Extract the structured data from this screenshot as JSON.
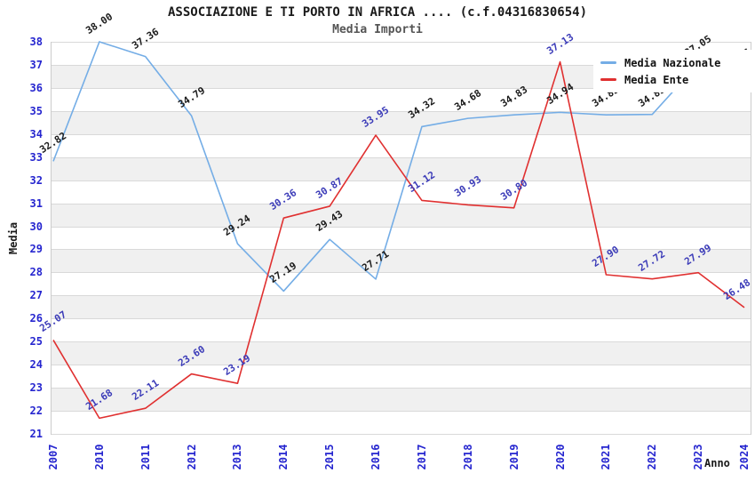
{
  "header": {
    "title": "ASSOCIAZIONE E TI PORTO IN AFRICA .... (c.f.04316830654)",
    "subtitle": "Media Importi"
  },
  "legend": {
    "items": [
      {
        "label": "Media Nazionale",
        "color": "#74ade6"
      },
      {
        "label": "Media Ente",
        "color": "#e03030"
      }
    ]
  },
  "colors": {
    "axis_tick_label": "#2525cf",
    "national_series_line": "#74ade6",
    "national_series_data_label": "#1a1a1a",
    "ente_series_line": "#e03030",
    "ente_series_data_label": "#3b3bb8",
    "band_fill": "#f0f0f0",
    "gridline": "#d9d9d9"
  },
  "chart_data": {
    "type": "line",
    "title": "ASSOCIAZIONE E TI PORTO IN AFRICA .... (c.f.04316830654)",
    "subtitle": "Media Importi",
    "xlabel": "Anno",
    "ylabel": "Media",
    "ylim": [
      21,
      38
    ],
    "ytick_step": 1,
    "grid": true,
    "alternating_bands": true,
    "legend_position": "top-right",
    "categories": [
      "2007",
      "2010",
      "2011",
      "2012",
      "2013",
      "2014",
      "2015",
      "2016",
      "2017",
      "2018",
      "2019",
      "2020",
      "2021",
      "2022",
      "2023",
      "2024"
    ],
    "series": [
      {
        "name": "Media Nazionale",
        "color": "#74ade6",
        "label_color": "#1a1a1a",
        "values": [
          32.82,
          38.0,
          37.36,
          34.79,
          29.24,
          27.19,
          29.43,
          27.71,
          34.32,
          34.68,
          34.83,
          34.94,
          34.83,
          34.85,
          37.05,
          36.46
        ]
      },
      {
        "name": "Media Ente",
        "color": "#e03030",
        "label_color": "#3b3bb8",
        "values": [
          25.07,
          21.68,
          22.11,
          23.6,
          23.19,
          30.36,
          30.87,
          33.95,
          31.12,
          30.93,
          30.8,
          37.13,
          27.9,
          27.72,
          27.99,
          26.48
        ]
      }
    ]
  }
}
